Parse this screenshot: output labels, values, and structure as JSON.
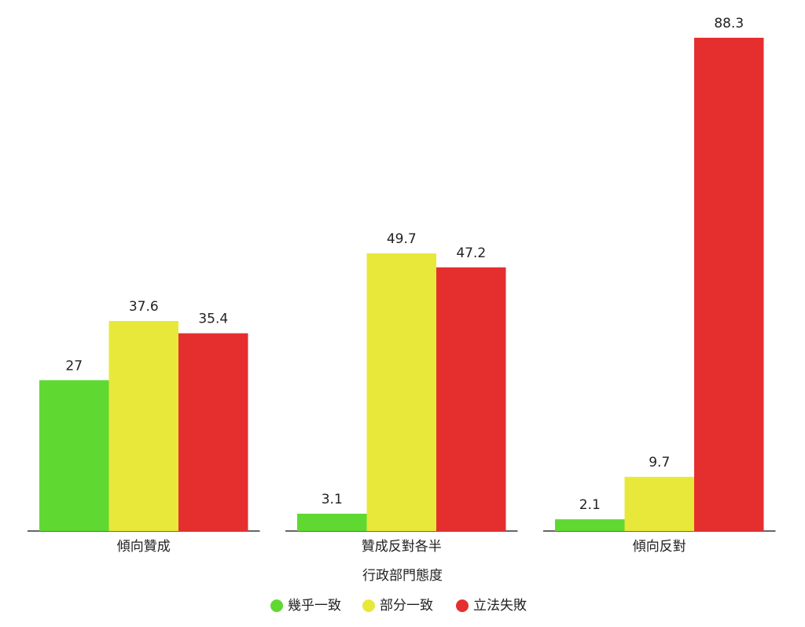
{
  "chart_data": {
    "type": "bar",
    "categories": [
      "傾向贊成",
      "贊成反對各半",
      "傾向反對"
    ],
    "x_label": "行政部門態度",
    "series": [
      {
        "name": "幾乎一致",
        "color": "#5fd932",
        "values": [
          27,
          3.1,
          2.1
        ]
      },
      {
        "name": "部分一致",
        "color": "#e8e83a",
        "values": [
          37.6,
          49.7,
          9.7
        ]
      },
      {
        "name": "立法失敗",
        "color": "#e52f2f",
        "values": [
          35.4,
          47.2,
          88.3
        ]
      }
    ],
    "legend": "bottom"
  }
}
